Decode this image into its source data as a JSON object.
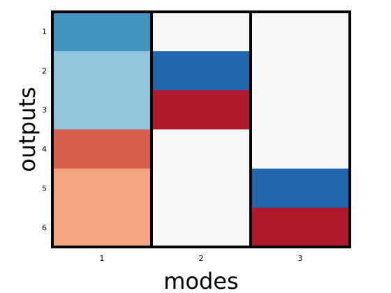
{
  "chart_data": {
    "type": "heatmap",
    "xlabel": "modes",
    "ylabel": "outputs",
    "x_categories": [
      "1",
      "2",
      "3"
    ],
    "y_categories": [
      "1",
      "2",
      "3",
      "4",
      "5",
      "6"
    ],
    "cell_colors": [
      [
        "#4393c3",
        "#f7f7f7",
        "#f7f7f7"
      ],
      [
        "#92c5de",
        "#2166ac",
        "#f7f7f7"
      ],
      [
        "#92c5de",
        "#b2182b",
        "#f7f7f7"
      ],
      [
        "#d6604d",
        "#f7f7f7",
        "#f7f7f7"
      ],
      [
        "#f4a582",
        "#f7f7f7",
        "#2166ac"
      ],
      [
        "#f4a582",
        "#f7f7f7",
        "#b2182b"
      ]
    ],
    "grid": false,
    "colorbar": false
  }
}
